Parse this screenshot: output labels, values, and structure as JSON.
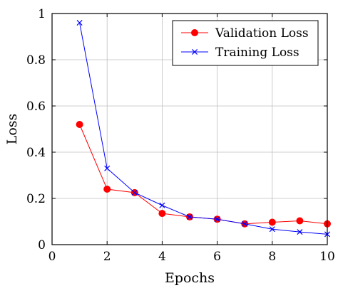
{
  "chart_data": {
    "type": "line",
    "title": "",
    "xlabel": "Epochs",
    "ylabel": "Loss",
    "xlim": [
      0,
      10
    ],
    "ylim": [
      0,
      1
    ],
    "x_ticks": [
      "0",
      "2",
      "4",
      "6",
      "8",
      "10"
    ],
    "y_ticks": [
      "0",
      "0.2",
      "0.4",
      "0.6",
      "0.8",
      "1"
    ],
    "grid": true,
    "legend_position": "top-right",
    "series": [
      {
        "name": "Validation Loss",
        "color": "#ff0000",
        "marker": "circle",
        "points": [
          {
            "x": 1,
            "y": 0.52
          },
          {
            "x": 2,
            "y": 0.24
          },
          {
            "x": 3,
            "y": 0.225
          },
          {
            "x": 4,
            "y": 0.135
          },
          {
            "x": 5,
            "y": 0.12
          },
          {
            "x": 6,
            "y": 0.11
          },
          {
            "x": 7,
            "y": 0.09
          },
          {
            "x": 8,
            "y": 0.097
          },
          {
            "x": 9,
            "y": 0.103
          },
          {
            "x": 10,
            "y": 0.09
          }
        ]
      },
      {
        "name": "Training Loss",
        "color": "#0000ff",
        "marker": "x",
        "points": [
          {
            "x": 1,
            "y": 0.96
          },
          {
            "x": 2,
            "y": 0.33
          },
          {
            "x": 3,
            "y": 0.225
          },
          {
            "x": 4,
            "y": 0.17
          },
          {
            "x": 5,
            "y": 0.12
          },
          {
            "x": 6,
            "y": 0.11
          },
          {
            "x": 7,
            "y": 0.09
          },
          {
            "x": 8,
            "y": 0.067
          },
          {
            "x": 9,
            "y": 0.055
          },
          {
            "x": 10,
            "y": 0.045
          }
        ]
      }
    ]
  }
}
